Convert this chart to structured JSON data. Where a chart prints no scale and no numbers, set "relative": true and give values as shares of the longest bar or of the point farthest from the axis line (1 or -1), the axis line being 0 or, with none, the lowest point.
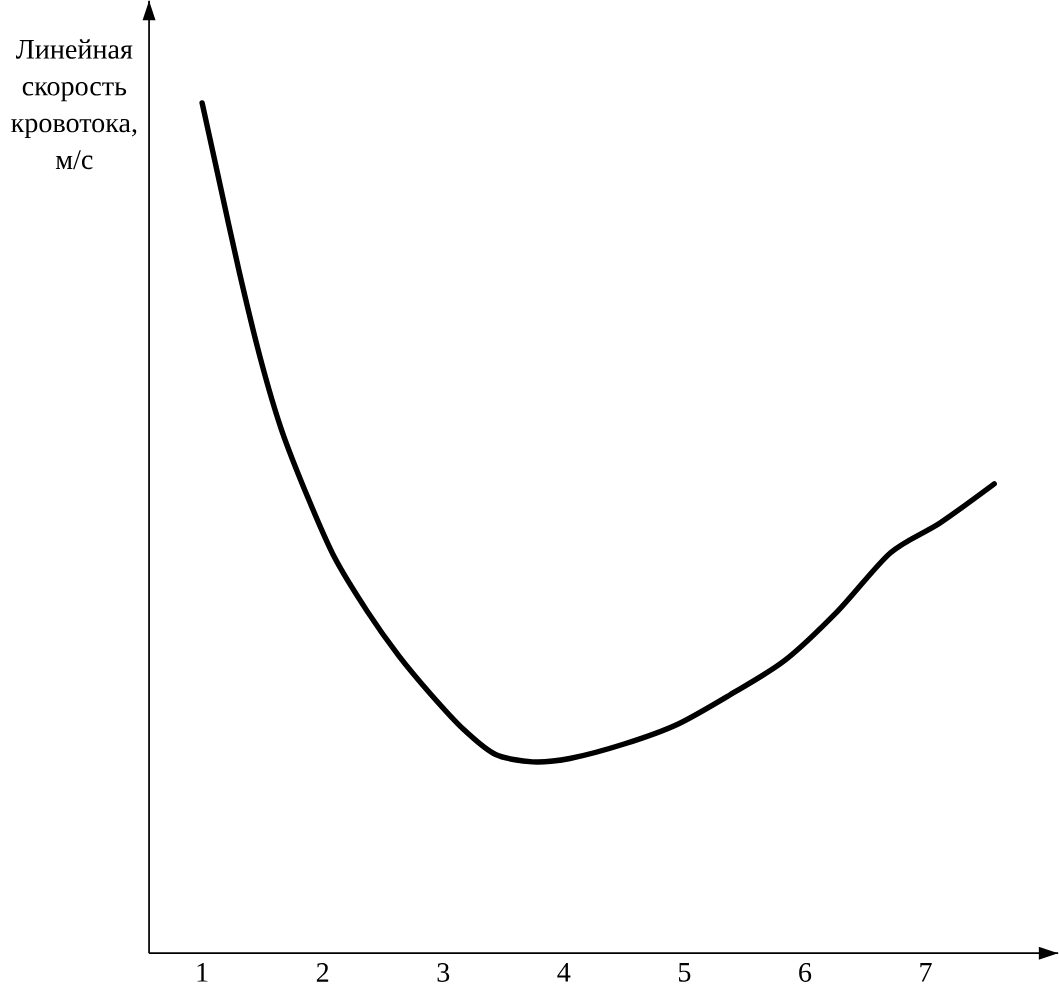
{
  "chart_data": {
    "type": "line",
    "relative": true,
    "ylabel": "Линейная скорость кровотока, м/с",
    "x": [
      1.0,
      1.13,
      1.31,
      1.49,
      1.66,
      1.88,
      2.1,
      2.37,
      2.63,
      2.9,
      3.17,
      3.43,
      3.74,
      4.05,
      4.5,
      4.94,
      5.38,
      5.83,
      6.27,
      6.71,
      7.12,
      7.57
    ],
    "values": [
      1.0,
      0.916,
      0.8,
      0.696,
      0.615,
      0.535,
      0.465,
      0.402,
      0.35,
      0.304,
      0.263,
      0.234,
      0.225,
      0.229,
      0.246,
      0.269,
      0.304,
      0.344,
      0.402,
      0.471,
      0.506,
      0.552
    ],
    "color": "#000000",
    "xlim": [
      0.56,
      8.1
    ],
    "xticks": [
      1,
      2,
      3,
      4,
      5,
      6,
      7
    ]
  }
}
